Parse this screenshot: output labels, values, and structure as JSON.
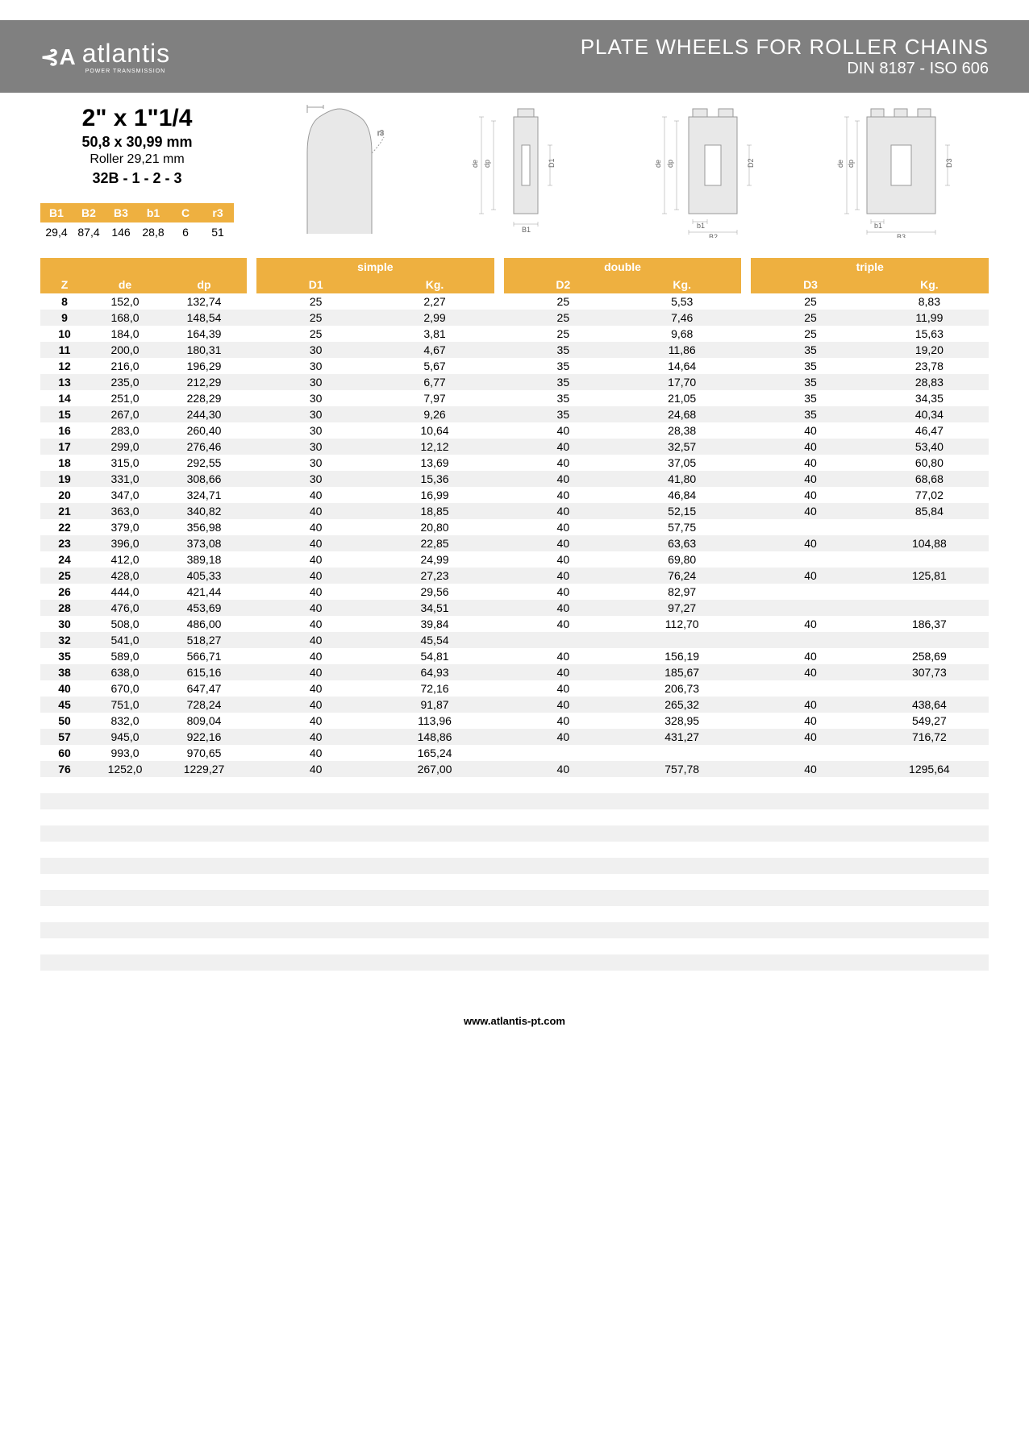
{
  "header": {
    "logo": "atlantis",
    "logo_sub": "POWER TRANSMISSION",
    "title": "PLATE WHEELS FOR ROLLER CHAINS",
    "subtitle": "DIN 8187 - ISO 606"
  },
  "spec": {
    "title": "2\" x 1\"1/4",
    "sub1": "50,8 x 30,99 mm",
    "sub2": "Roller 29,21 mm",
    "sub3": "32B - 1 - 2 - 3"
  },
  "small_table": {
    "headers": [
      "B1",
      "B2",
      "B3",
      "b1",
      "C",
      "r3"
    ],
    "values": [
      "29,4",
      "87,4",
      "146",
      "28,8",
      "6",
      "51"
    ]
  },
  "table": {
    "left_headers": [
      "Z",
      "de",
      "dp"
    ],
    "sections": [
      {
        "label": "simple",
        "cols": [
          "D1",
          "Kg."
        ]
      },
      {
        "label": "double",
        "cols": [
          "D2",
          "Kg."
        ]
      },
      {
        "label": "triple",
        "cols": [
          "D3",
          "Kg."
        ]
      }
    ],
    "rows": [
      {
        "z": "8",
        "de": "152,0",
        "dp": "132,74",
        "s": [
          "25",
          "2,27"
        ],
        "d": [
          "25",
          "5,53"
        ],
        "t": [
          "25",
          "8,83"
        ]
      },
      {
        "z": "9",
        "de": "168,0",
        "dp": "148,54",
        "s": [
          "25",
          "2,99"
        ],
        "d": [
          "25",
          "7,46"
        ],
        "t": [
          "25",
          "11,99"
        ]
      },
      {
        "z": "10",
        "de": "184,0",
        "dp": "164,39",
        "s": [
          "25",
          "3,81"
        ],
        "d": [
          "25",
          "9,68"
        ],
        "t": [
          "25",
          "15,63"
        ]
      },
      {
        "z": "11",
        "de": "200,0",
        "dp": "180,31",
        "s": [
          "30",
          "4,67"
        ],
        "d": [
          "35",
          "11,86"
        ],
        "t": [
          "35",
          "19,20"
        ]
      },
      {
        "z": "12",
        "de": "216,0",
        "dp": "196,29",
        "s": [
          "30",
          "5,67"
        ],
        "d": [
          "35",
          "14,64"
        ],
        "t": [
          "35",
          "23,78"
        ]
      },
      {
        "z": "13",
        "de": "235,0",
        "dp": "212,29",
        "s": [
          "30",
          "6,77"
        ],
        "d": [
          "35",
          "17,70"
        ],
        "t": [
          "35",
          "28,83"
        ]
      },
      {
        "z": "14",
        "de": "251,0",
        "dp": "228,29",
        "s": [
          "30",
          "7,97"
        ],
        "d": [
          "35",
          "21,05"
        ],
        "t": [
          "35",
          "34,35"
        ]
      },
      {
        "z": "15",
        "de": "267,0",
        "dp": "244,30",
        "s": [
          "30",
          "9,26"
        ],
        "d": [
          "35",
          "24,68"
        ],
        "t": [
          "35",
          "40,34"
        ]
      },
      {
        "z": "16",
        "de": "283,0",
        "dp": "260,40",
        "s": [
          "30",
          "10,64"
        ],
        "d": [
          "40",
          "28,38"
        ],
        "t": [
          "40",
          "46,47"
        ]
      },
      {
        "z": "17",
        "de": "299,0",
        "dp": "276,46",
        "s": [
          "30",
          "12,12"
        ],
        "d": [
          "40",
          "32,57"
        ],
        "t": [
          "40",
          "53,40"
        ]
      },
      {
        "z": "18",
        "de": "315,0",
        "dp": "292,55",
        "s": [
          "30",
          "13,69"
        ],
        "d": [
          "40",
          "37,05"
        ],
        "t": [
          "40",
          "60,80"
        ]
      },
      {
        "z": "19",
        "de": "331,0",
        "dp": "308,66",
        "s": [
          "30",
          "15,36"
        ],
        "d": [
          "40",
          "41,80"
        ],
        "t": [
          "40",
          "68,68"
        ]
      },
      {
        "z": "20",
        "de": "347,0",
        "dp": "324,71",
        "s": [
          "40",
          "16,99"
        ],
        "d": [
          "40",
          "46,84"
        ],
        "t": [
          "40",
          "77,02"
        ]
      },
      {
        "z": "21",
        "de": "363,0",
        "dp": "340,82",
        "s": [
          "40",
          "18,85"
        ],
        "d": [
          "40",
          "52,15"
        ],
        "t": [
          "40",
          "85,84"
        ]
      },
      {
        "z": "22",
        "de": "379,0",
        "dp": "356,98",
        "s": [
          "40",
          "20,80"
        ],
        "d": [
          "40",
          "57,75"
        ],
        "t": [
          "",
          ""
        ]
      },
      {
        "z": "23",
        "de": "396,0",
        "dp": "373,08",
        "s": [
          "40",
          "22,85"
        ],
        "d": [
          "40",
          "63,63"
        ],
        "t": [
          "40",
          "104,88"
        ]
      },
      {
        "z": "24",
        "de": "412,0",
        "dp": "389,18",
        "s": [
          "40",
          "24,99"
        ],
        "d": [
          "40",
          "69,80"
        ],
        "t": [
          "",
          ""
        ]
      },
      {
        "z": "25",
        "de": "428,0",
        "dp": "405,33",
        "s": [
          "40",
          "27,23"
        ],
        "d": [
          "40",
          "76,24"
        ],
        "t": [
          "40",
          "125,81"
        ]
      },
      {
        "z": "26",
        "de": "444,0",
        "dp": "421,44",
        "s": [
          "40",
          "29,56"
        ],
        "d": [
          "40",
          "82,97"
        ],
        "t": [
          "",
          ""
        ]
      },
      {
        "z": "28",
        "de": "476,0",
        "dp": "453,69",
        "s": [
          "40",
          "34,51"
        ],
        "d": [
          "40",
          "97,27"
        ],
        "t": [
          "",
          ""
        ]
      },
      {
        "z": "30",
        "de": "508,0",
        "dp": "486,00",
        "s": [
          "40",
          "39,84"
        ],
        "d": [
          "40",
          "112,70"
        ],
        "t": [
          "40",
          "186,37"
        ]
      },
      {
        "z": "32",
        "de": "541,0",
        "dp": "518,27",
        "s": [
          "40",
          "45,54"
        ],
        "d": [
          "",
          ""
        ],
        "t": [
          "",
          ""
        ]
      },
      {
        "z": "35",
        "de": "589,0",
        "dp": "566,71",
        "s": [
          "40",
          "54,81"
        ],
        "d": [
          "40",
          "156,19"
        ],
        "t": [
          "40",
          "258,69"
        ]
      },
      {
        "z": "38",
        "de": "638,0",
        "dp": "615,16",
        "s": [
          "40",
          "64,93"
        ],
        "d": [
          "40",
          "185,67"
        ],
        "t": [
          "40",
          "307,73"
        ]
      },
      {
        "z": "40",
        "de": "670,0",
        "dp": "647,47",
        "s": [
          "40",
          "72,16"
        ],
        "d": [
          "40",
          "206,73"
        ],
        "t": [
          "",
          ""
        ]
      },
      {
        "z": "45",
        "de": "751,0",
        "dp": "728,24",
        "s": [
          "40",
          "91,87"
        ],
        "d": [
          "40",
          "265,32"
        ],
        "t": [
          "40",
          "438,64"
        ]
      },
      {
        "z": "50",
        "de": "832,0",
        "dp": "809,04",
        "s": [
          "40",
          "113,96"
        ],
        "d": [
          "40",
          "328,95"
        ],
        "t": [
          "40",
          "549,27"
        ]
      },
      {
        "z": "57",
        "de": "945,0",
        "dp": "922,16",
        "s": [
          "40",
          "148,86"
        ],
        "d": [
          "40",
          "431,27"
        ],
        "t": [
          "40",
          "716,72"
        ]
      },
      {
        "z": "60",
        "de": "993,0",
        "dp": "970,65",
        "s": [
          "40",
          "165,24"
        ],
        "d": [
          "",
          ""
        ],
        "t": [
          "",
          ""
        ]
      },
      {
        "z": "76",
        "de": "1252,0",
        "dp": "1229,27",
        "s": [
          "40",
          "267,00"
        ],
        "d": [
          "40",
          "757,78"
        ],
        "t": [
          "40",
          "1295,64"
        ]
      }
    ],
    "empty_rows": 12
  },
  "footer": "www.atlantis-pt.com",
  "colors": {
    "header_bg": "#808080",
    "accent": "#eeb040",
    "row_alt": "#f0f0f0"
  }
}
